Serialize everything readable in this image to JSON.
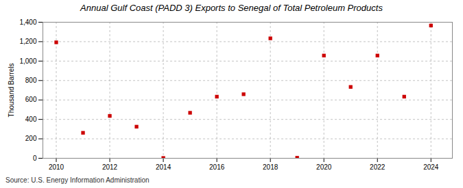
{
  "chart_data": {
    "type": "scatter",
    "title": "Annual Gulf Coast (PADD 3) Exports to Senegal of Total Petroleum Products",
    "ylabel": "Thousand Barrels",
    "annotations": [
      "Source: U.S. Energy Information Administration"
    ],
    "x": [
      2010,
      2011,
      2012,
      2013,
      2014,
      2015,
      2016,
      2017,
      2018,
      2019,
      2020,
      2021,
      2022,
      2023,
      2024
    ],
    "values": [
      1193,
      262,
      436,
      325,
      3,
      468,
      634,
      659,
      1234,
      5,
      1057,
      734,
      1057,
      634,
      1366
    ],
    "color": "#cc0000",
    "marker": "square",
    "xlim": [
      2009.5,
      2024.8
    ],
    "xticks": [
      2010,
      2012,
      2014,
      2016,
      2018,
      2020,
      2022,
      2024
    ],
    "ylim": [
      0,
      1400
    ],
    "yticks": [
      0,
      200,
      400,
      600,
      800,
      {
        "value": 1000,
        "label": "1,000"
      },
      {
        "value": 1200,
        "label": "1,200"
      },
      {
        "value": 1400,
        "label": "1,400"
      }
    ],
    "grid": true
  }
}
